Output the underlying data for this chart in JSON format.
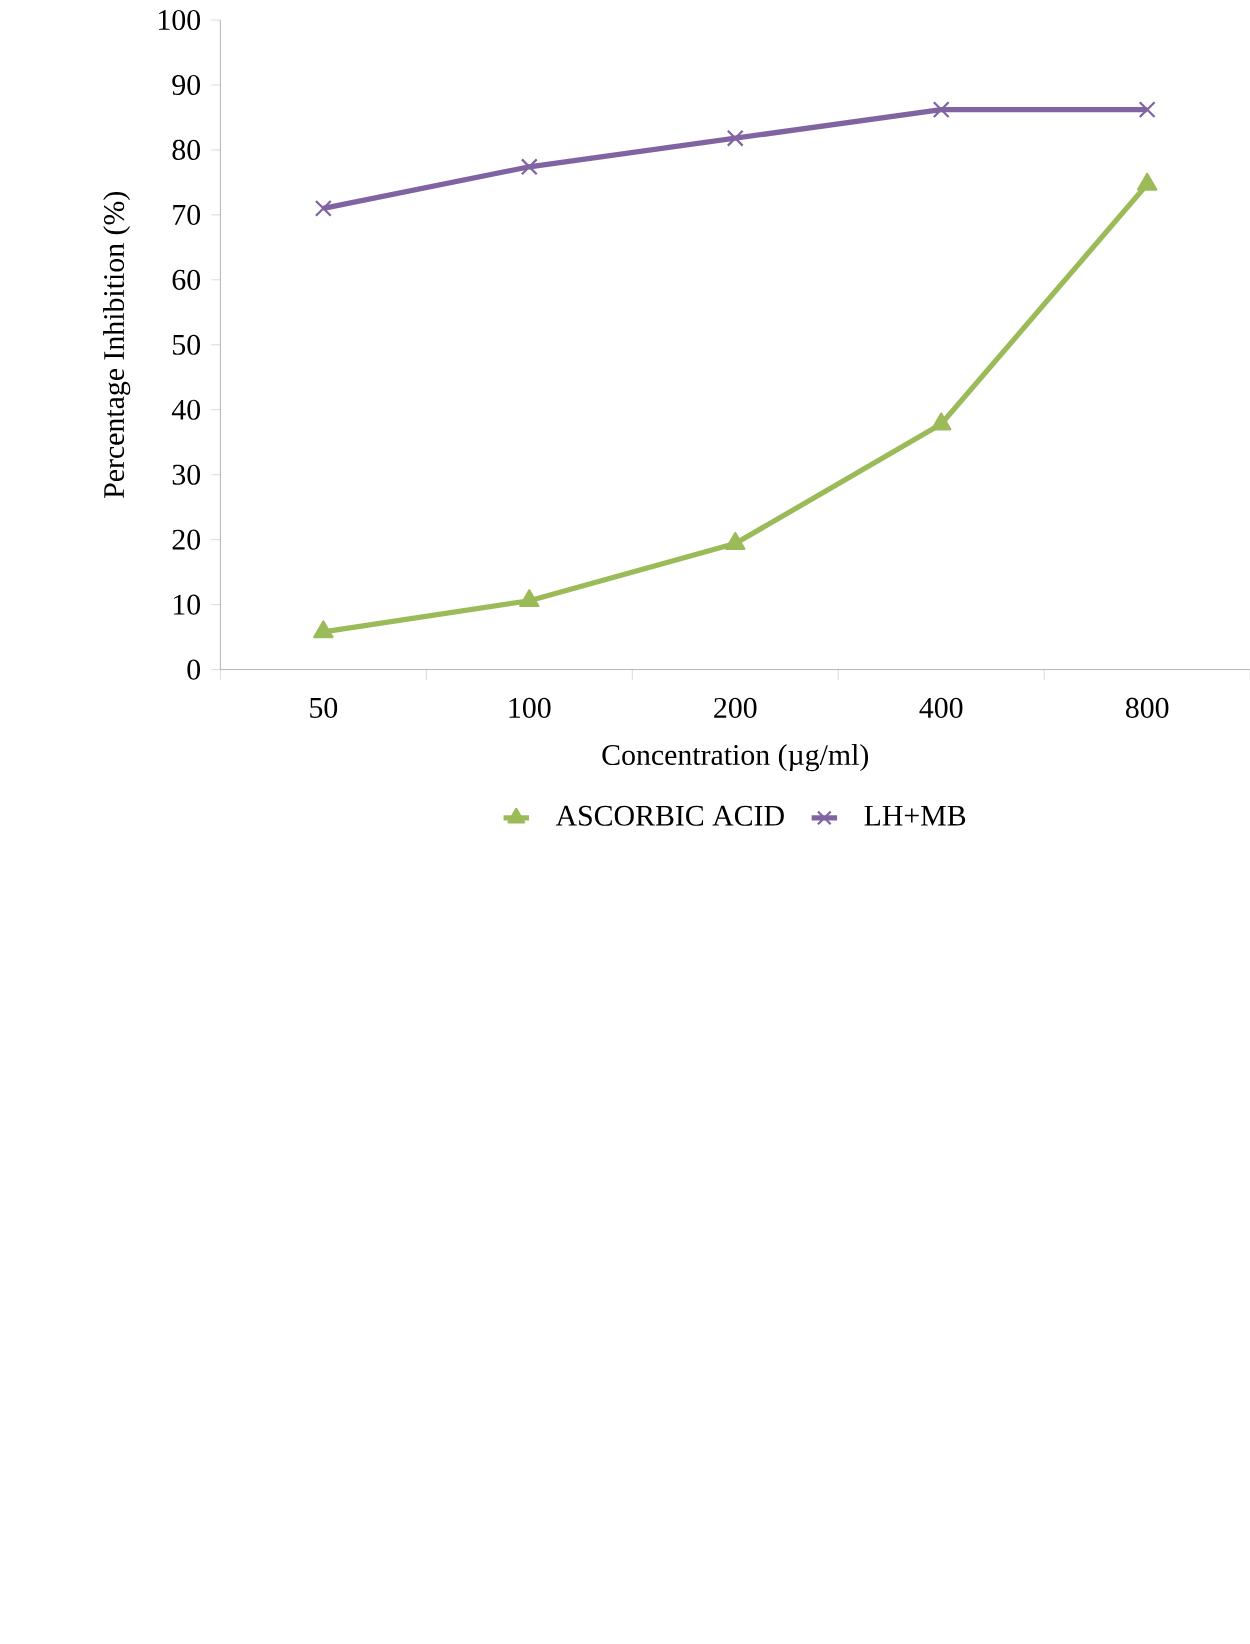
{
  "chart_data": {
    "type": "line",
    "xlabel": "Concentration (µg/ml)",
    "ylabel": "Percentage Inhibition (%)",
    "categories": [
      "50",
      "100",
      "200",
      "400",
      "800"
    ],
    "series": [
      {
        "name": "ASCORBIC ACID",
        "color": "#9bbb59",
        "marker": "triangle",
        "values": [
          5.8,
          10.6,
          19.4,
          37.8,
          74.7
        ]
      },
      {
        "name": "LH+MB",
        "color": "#8064a2",
        "marker": "cross",
        "values": [
          71,
          77.4,
          81.8,
          86.2,
          86.2
        ]
      }
    ],
    "ylim": [
      0,
      100
    ],
    "yticks": [
      0,
      10,
      20,
      30,
      40,
      50,
      60,
      70,
      80,
      90,
      100
    ],
    "grid": false,
    "legend": "bottom",
    "line_style": "solid"
  }
}
